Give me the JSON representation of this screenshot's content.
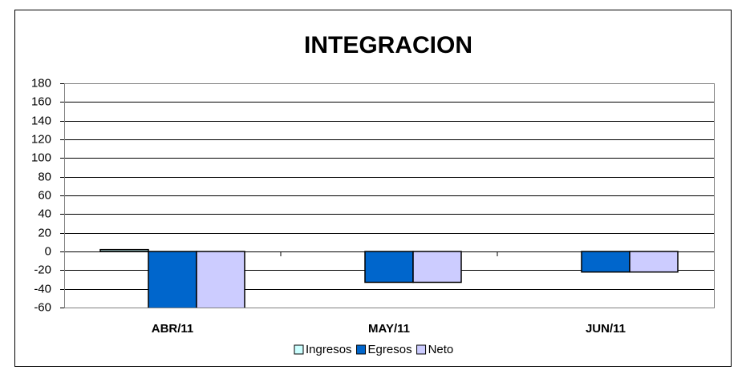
{
  "chart_data": {
    "type": "bar",
    "title": "INTEGRACION",
    "categories": [
      "ABR/11",
      "MAY/11",
      "JUN/11"
    ],
    "series": [
      {
        "name": "Ingresos",
        "color": "#ccffff",
        "values": [
          2,
          0,
          0
        ]
      },
      {
        "name": "Egresos",
        "color": "#0066cc",
        "values": [
          -70,
          -33,
          -22
        ]
      },
      {
        "name": "Neto",
        "color": "#ccccff",
        "values": [
          -70,
          -33,
          -22
        ]
      }
    ],
    "ylim": [
      -60,
      180
    ],
    "yticks": [
      -60,
      -40,
      -20,
      0,
      20,
      40,
      60,
      80,
      100,
      120,
      140,
      160,
      180
    ],
    "grid": true,
    "legend": "bottom"
  }
}
